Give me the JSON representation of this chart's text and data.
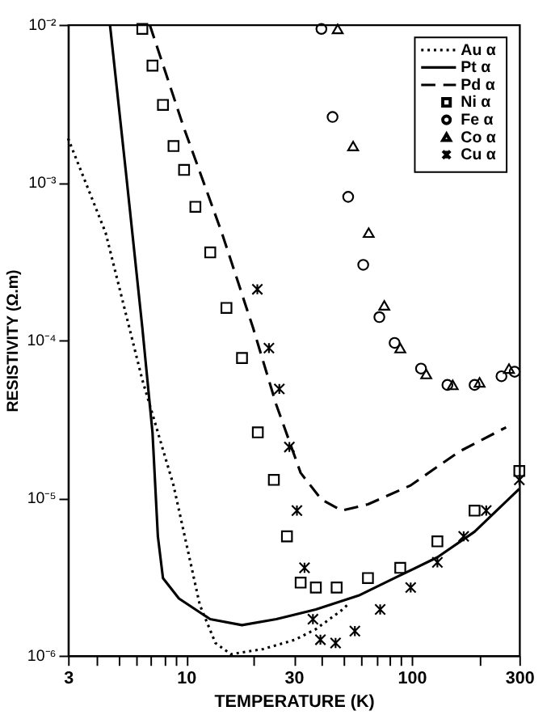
{
  "chart_data": {
    "type": "line",
    "xlabel": "TEMPERATURE (K)",
    "ylabel": "RESISTIVITY (Ω.m)",
    "log": "xy",
    "xlim": [
      3,
      300
    ],
    "ylim": [
      1e-06,
      0.01
    ],
    "xticks": [
      3,
      {
        "value": 4,
        "label": null
      },
      {
        "value": 5,
        "label": null
      },
      {
        "value": 6,
        "label": null
      },
      {
        "value": 7,
        "label": null
      },
      {
        "value": 8,
        "label": null
      },
      {
        "value": 9,
        "label": null
      },
      10,
      {
        "value": 20,
        "label": null
      },
      30,
      {
        "value": 40,
        "label": null
      },
      {
        "value": 50,
        "label": null
      },
      {
        "value": 60,
        "label": null
      },
      {
        "value": 70,
        "label": null
      },
      {
        "value": 80,
        "label": null
      },
      {
        "value": 90,
        "label": null
      },
      100,
      {
        "value": 200,
        "label": null
      },
      300
    ],
    "yticks": [
      {
        "value": 1e-06,
        "label": "10⁻⁶"
      },
      {
        "value": 1e-05,
        "label": "10⁻⁵"
      },
      {
        "value": 0.0001,
        "label": "10⁻⁴"
      },
      {
        "value": 0.001,
        "label": "10⁻³"
      },
      {
        "value": 0.01,
        "label": "10⁻²"
      }
    ],
    "grid": false,
    "legend": "top right",
    "series": [
      {
        "name": "Au α",
        "line_style": "dotted",
        "color": "#000000",
        "x": [
          3,
          4.4,
          6.4,
          8.8,
          11.5,
          13.5,
          15.8,
          22,
          30.4,
          37.6,
          49,
          52
        ],
        "values": [
          0.0019,
          0.00048,
          5.6e-05,
          1.2e-05,
          2.1e-06,
          1.2e-06,
          1.02e-06,
          1.1e-06,
          1.26e-06,
          1.47e-06,
          1.94e-06,
          2.1e-06
        ]
      },
      {
        "name": "Pt α",
        "line_style": "solid",
        "color": "#000000",
        "x": [
          4.6,
          5.4,
          6.4,
          7.1,
          7.5,
          7.9,
          9.3,
          12.8,
          17.7,
          25.1,
          37.6,
          58.2,
          84,
          130,
          190,
          300
        ],
        "values": [
          0.01,
          0.0012,
          0.00012,
          2.6e-05,
          5.7e-06,
          3.1e-06,
          2.3e-06,
          1.7e-06,
          1.56e-06,
          1.7e-06,
          1.96e-06,
          2.4e-06,
          3.1e-06,
          4.2e-06,
          6.1e-06,
          1.14e-05
        ]
      },
      {
        "name": "Pd α",
        "line_style": "dashed",
        "color": "#000000",
        "x": [
          6.9,
          9.8,
          14.4,
          19.8,
          25.1,
          32.2,
          39.7,
          49,
          64,
          99,
          162,
          262
        ],
        "values": [
          0.01,
          0.0022,
          0.00048,
          0.00012,
          3.9e-05,
          1.44e-05,
          9.8e-06,
          8.3e-06,
          9.1e-06,
          1.2e-05,
          1.96e-05,
          2.8e-05
        ]
      },
      {
        "name": "Ni α",
        "type": "scatter",
        "marker": "square",
        "color": "#000000",
        "x": [
          6.4,
          7.1,
          7.9,
          8.8,
          9.8,
          11,
          12.8,
          15.1,
          17.7,
          20.8,
          24.5,
          28,
          32.2,
          37.6,
          46.5,
          64,
          89,
          130,
          190,
          300
        ],
        "values": [
          0.0094,
          0.0055,
          0.0031,
          0.0017,
          0.0012,
          0.0007,
          0.00036,
          0.00016,
          7.7e-05,
          2.6e-05,
          1.3e-05,
          5.7e-06,
          2.9e-06,
          2.7e-06,
          2.7e-06,
          3.1e-06,
          3.6e-06,
          5.3e-06,
          8.3e-06,
          1.48e-05
        ]
      },
      {
        "name": "Fe α",
        "type": "scatter",
        "marker": "circle",
        "color": "#000000",
        "x": [
          39.8,
          44.6,
          52.3,
          61,
          71.9,
          84,
          110,
          144,
          190,
          250,
          286
        ],
        "values": [
          0.0094,
          0.0026,
          0.00081,
          0.0003,
          0.00014,
          9.6e-05,
          6.6e-05,
          5.2e-05,
          5.2e-05,
          5.9e-05,
          6.3e-05
        ]
      },
      {
        "name": "Co α",
        "type": "scatter",
        "marker": "triangle",
        "color": "#000000",
        "x": [
          47,
          55,
          64.5,
          75.6,
          89,
          116,
          152,
          200,
          270
        ],
        "values": [
          0.0094,
          0.0017,
          0.00048,
          0.000166,
          8.9e-05,
          6.1e-05,
          5.2e-05,
          5.4e-05,
          6.6e-05
        ]
      },
      {
        "name": "Cu α",
        "type": "scatter",
        "marker": "cross",
        "color": "#000000",
        "x": [
          20.7,
          23.3,
          25.9,
          28.7,
          31,
          33.5,
          36.5,
          39.4,
          46,
          56,
          72.5,
          99,
          130,
          170,
          214,
          300
        ],
        "values": [
          0.00021,
          8.9e-05,
          4.9e-05,
          2.1e-05,
          8.3e-06,
          3.6e-06,
          1.7e-06,
          1.26e-06,
          1.2e-06,
          1.43e-06,
          1.96e-06,
          2.7e-06,
          3.9e-06,
          5.7e-06,
          8.3e-06,
          1.3e-05
        ]
      }
    ]
  }
}
